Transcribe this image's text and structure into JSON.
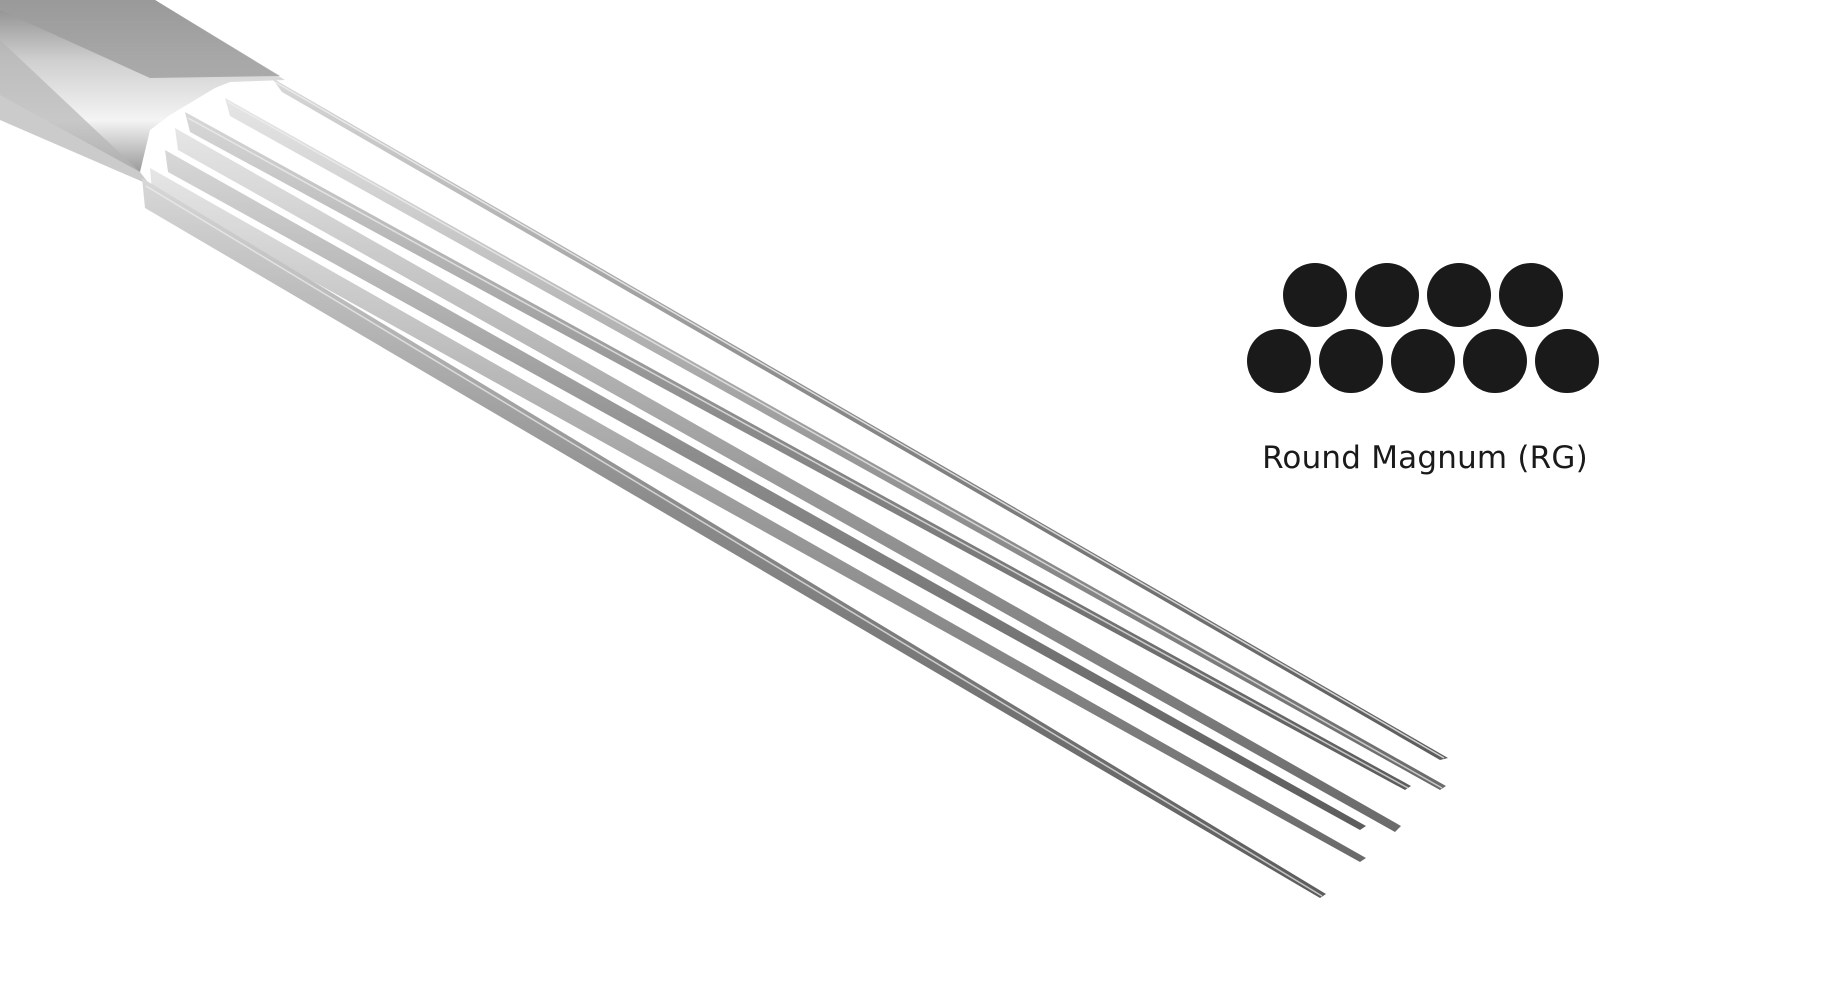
{
  "product": {
    "image_subject": "needle-cartridge-icon",
    "configuration_name": "Round Magnum (RG)",
    "layout": {
      "top_row_count": 4,
      "bottom_row_count": 5
    },
    "colors": {
      "dot": "#1a1a1a",
      "steel_light": "#f2f2f2",
      "steel_mid": "#a9a9a9",
      "steel_dark": "#6a6a6a"
    }
  }
}
